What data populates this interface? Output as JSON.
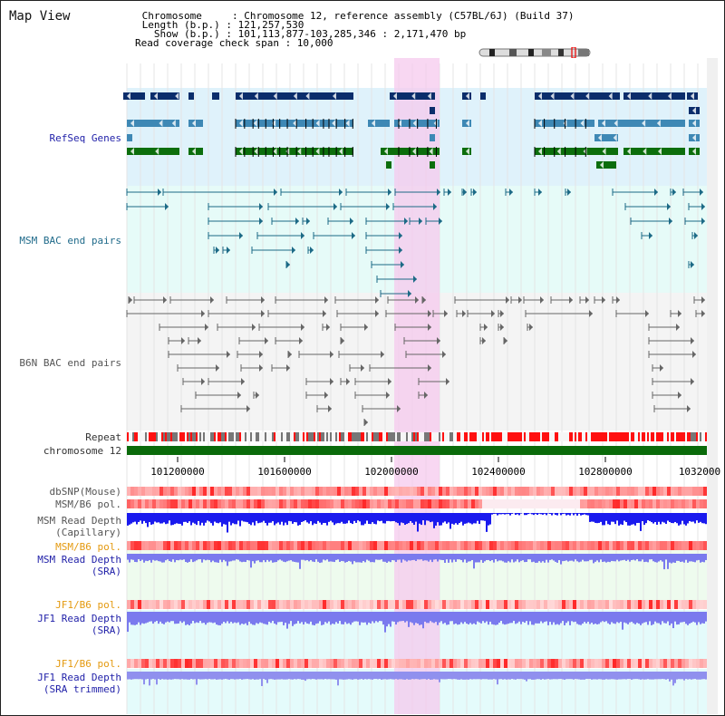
{
  "page": {
    "title": "Map View"
  },
  "header": {
    "lines": [
      " Chromosome     : Chromosome 12, reference assembly (C57BL/6J) (Build 37)",
      " Length (b.p.) : 121,257,530",
      "   Show (b.p.) : 101,113,877-103,285,346 : 2,171,470 bp",
      "Read coverage check span : 10,000"
    ]
  },
  "tracks": {
    "refseq": "RefSeq Genes",
    "msm_bac": "MSM BAC end pairs",
    "b6n_bac": "B6N BAC end pairs",
    "repeat": "Repeat",
    "chromosome": "chromosome 12",
    "dbsnp": "dbSNP(Mouse)",
    "msm_b6_pol": "MSM/B6 pol.",
    "msm_read_depth_cap_1": "MSM Read Depth",
    "msm_read_depth_cap_2": "(Capillary)",
    "msm_b6_pol_2": "MSM/B6 pol.",
    "msm_read_depth_sra_1": "MSM Read Depth",
    "msm_read_depth_sra_2": "(SRA)",
    "jf1_b6_pol": "JF1/B6 pol.",
    "jf1_read_depth_sra_1": "JF1 Read Depth",
    "jf1_read_depth_sra_2": "(SRA)",
    "jf1_b6_pol_2": "JF1/B6 pol.",
    "jf1_read_depth_trim_1": "JF1 Read Depth",
    "jf1_read_depth_trim_2": "(SRA trimmed)"
  },
  "axis": {
    "ticks": [
      "101200000",
      "101600000",
      "102000000",
      "102400000",
      "102800000",
      "1032000"
    ]
  },
  "colors": {
    "refseq_dark": "#0b2d6b",
    "refseq_mid": "#3e88b5",
    "refseq_green": "#0c6e0c",
    "msm_bac": "#1c6a86",
    "b6n_bac": "#666666",
    "chromosome": "#0a6a0a",
    "depth_blue": "#1a1aee",
    "depth_light": "#7a7aee",
    "highlight": "#f6c9ee"
  }
}
